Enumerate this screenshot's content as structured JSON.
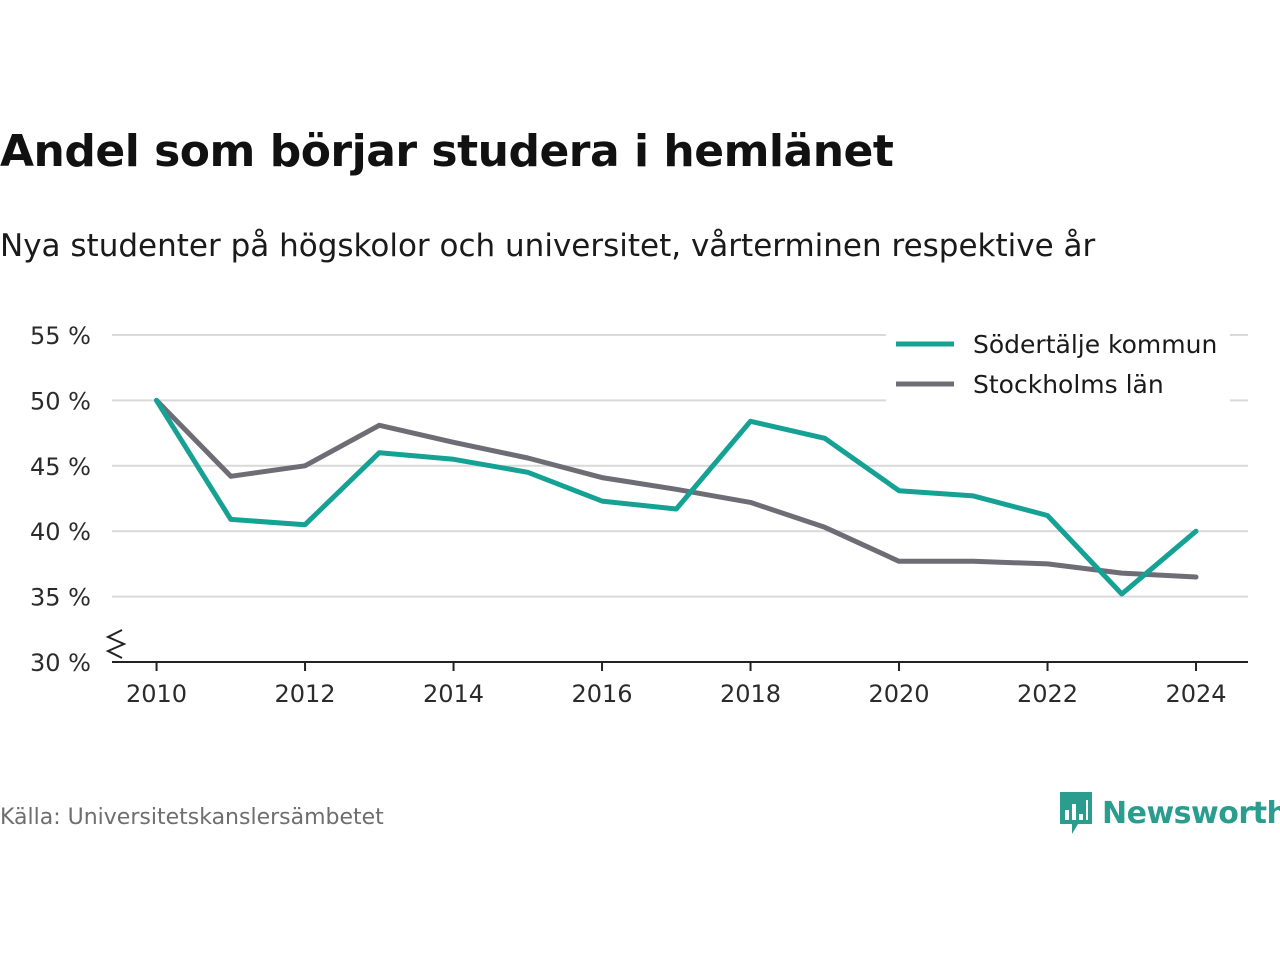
{
  "header": {
    "title": "Andel som börjar studera i hemlänet",
    "subtitle": "Nya studenter på högskolor och universitet, vårterminen respektive år"
  },
  "footer": {
    "source": "Källa: Universitetskanslersämbetet",
    "brand_name": "Newsworthy"
  },
  "icons": {
    "brand_logo": "newsworthy-logo-icon",
    "axis_break": "axis-break-icon"
  },
  "colors": {
    "sodertalje": "#16a195",
    "stockholm": "#6e6d75",
    "grid": "#d9d9d9",
    "brand": "#2a9d8f"
  },
  "chart_data": {
    "type": "line",
    "title": "Andel som börjar studera i hemlänet",
    "subtitle": "Nya studenter på högskolor och universitet, vårterminen respektive år",
    "xlabel": "",
    "ylabel": "",
    "x": [
      2010,
      2011,
      2012,
      2013,
      2014,
      2015,
      2016,
      2017,
      2018,
      2019,
      2020,
      2021,
      2022,
      2023,
      2024
    ],
    "xticks": [
      2010,
      2012,
      2014,
      2016,
      2018,
      2020,
      2022,
      2024
    ],
    "xtick_labels": [
      "2010",
      "2012",
      "2014",
      "2016",
      "2018",
      "2020",
      "2022",
      "2024"
    ],
    "xlim": [
      2009.4,
      2024.7
    ],
    "ylim": [
      30,
      55
    ],
    "yticks": [
      30,
      35,
      40,
      45,
      50,
      55
    ],
    "ytick_labels": [
      "30 %",
      "35 %",
      "40 %",
      "45 %",
      "50 %",
      "55 %"
    ],
    "y_axis_break": true,
    "grid": true,
    "legend_position": "top-right",
    "series": [
      {
        "name": "Södertälje kommun",
        "color": "#16a195",
        "values": [
          50.0,
          40.9,
          40.5,
          46.0,
          45.5,
          44.5,
          42.3,
          41.7,
          48.4,
          47.1,
          43.1,
          42.7,
          41.2,
          35.2,
          40.0
        ]
      },
      {
        "name": "Stockholms län",
        "color": "#6e6d75",
        "values": [
          50.0,
          44.2,
          45.0,
          48.1,
          46.8,
          45.6,
          44.1,
          43.2,
          42.2,
          40.3,
          37.7,
          37.7,
          37.5,
          36.8,
          36.5
        ]
      }
    ]
  }
}
